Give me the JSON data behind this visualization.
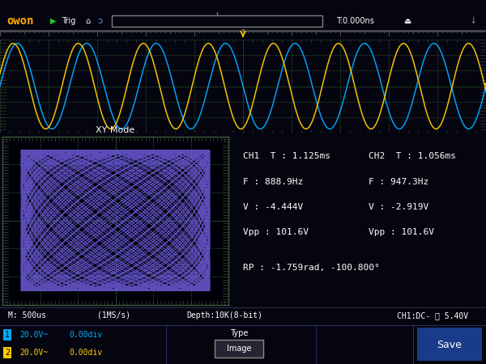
{
  "bg_color": "#050510",
  "screen_bg": "#000008",
  "top_bar_color": "#101018",
  "bottom_bar_color": "#151a2a",
  "owon_color": "#ffaa00",
  "trig_text": "Trig",
  "time_text": "T:0.000ns",
  "ch1_color": "#00aaff",
  "ch2_color": "#ffcc00",
  "lissajous_color": "#6655cc",
  "grid_color": "#1a3a1a",
  "dotted_line_color": "#2a5a2a",
  "xy_label": "XY Mode",
  "status_text": "M: 500us       (1MS/s)       Depth:10K(8-bit)",
  "ch1_dc_text": "CH1:DC- ∯ 5.40V",
  "info_bg": "#0a1530",
  "info_border": "#2a4a8a",
  "ch1_t": "CH1  T : 1.125ms",
  "ch2_t": "CH2  T : 1.056ms",
  "ch1_f": "F : 888.9Hz",
  "ch2_f": "F : 947.3Hz",
  "ch1_v": "V : -4.444V",
  "ch2_v": "V : -2.919V",
  "ch1_vpp": "Vpp : 101.6V",
  "ch2_vpp": "Vpp : 101.6V",
  "rp_text": "RP : -1.759rad, -100.800°",
  "type_text": "Type",
  "image_text": "Image",
  "save_text": "Save",
  "ch1_freq": 888.9,
  "ch2_freq": 947.3,
  "phase_shift": -1.759
}
